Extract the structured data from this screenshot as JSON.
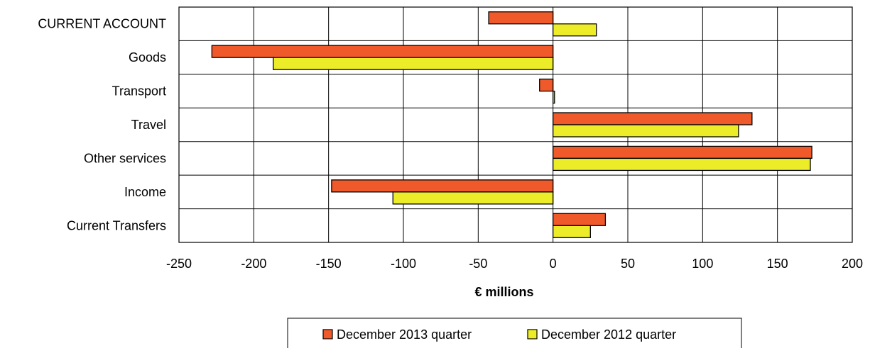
{
  "chart_data": {
    "type": "bar",
    "orientation": "horizontal",
    "title": "",
    "xlabel": "€ millions",
    "ylabel": "",
    "categories": [
      "CURRENT ACCOUNT",
      "Goods",
      "Transport",
      "Travel",
      "Other services",
      "Income",
      "Current Transfers"
    ],
    "series": [
      {
        "name": "December 2013 quarter",
        "color": "#f05a2b",
        "values": [
          -43,
          -228,
          -9,
          133,
          173,
          -148,
          35
        ]
      },
      {
        "name": "December 2012 quarter",
        "color": "#ecec28",
        "values": [
          29,
          -187,
          1,
          124,
          172,
          -107,
          25
        ]
      }
    ],
    "xlim": [
      -250,
      200
    ],
    "xticks": [
      -250,
      -200,
      -150,
      -100,
      -50,
      0,
      50,
      100,
      150,
      200
    ],
    "xtick_labels": [
      "-250",
      "-200",
      "-150",
      "-100",
      "-50",
      "0",
      "50",
      "100",
      "150",
      "200"
    ],
    "grid": true,
    "legend_position": "bottom"
  }
}
